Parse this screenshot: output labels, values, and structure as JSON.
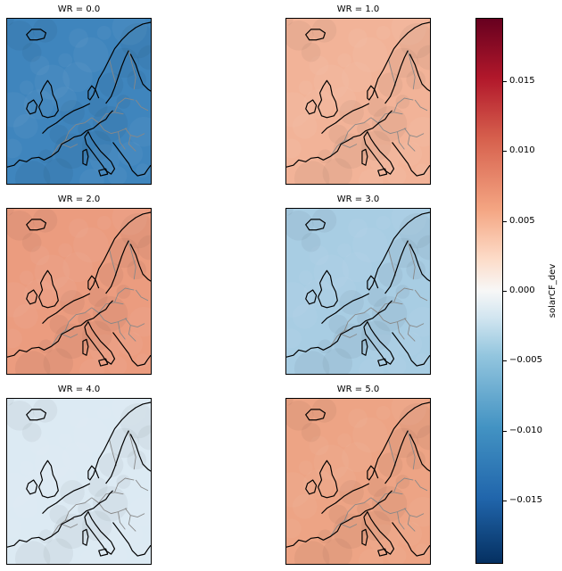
{
  "panels": [
    {
      "title": "WR = 0.0",
      "color": "#3f85bd"
    },
    {
      "title": "WR = 1.0",
      "color": "#f2b398"
    },
    {
      "title": "WR = 2.0",
      "color": "#eb9c7f"
    },
    {
      "title": "WR = 3.0",
      "color": "#a8cde3"
    },
    {
      "title": "WR = 4.0",
      "color": "#dceaf3"
    },
    {
      "title": "WR = 5.0",
      "color": "#eda485"
    }
  ],
  "colorbar": {
    "label": "solarCF_dev",
    "vmin": -0.0195,
    "vmax": 0.0195,
    "ticks": [
      "0.015",
      "0.010",
      "0.005",
      "0.000",
      "−0.005",
      "−0.010",
      "−0.015"
    ],
    "tick_values": [
      0.015,
      0.01,
      0.005,
      0.0,
      -0.005,
      -0.01,
      -0.015
    ],
    "colormap": "RdBu_r"
  }
}
